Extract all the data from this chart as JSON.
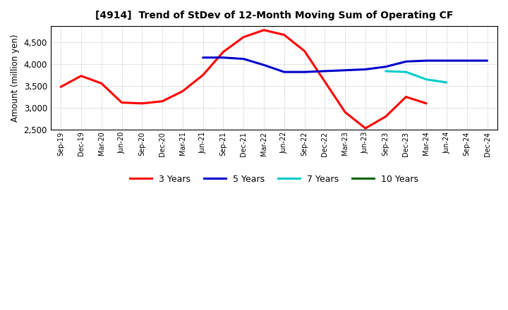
{
  "title": "[4914]  Trend of StDev of 12-Month Moving Sum of Operating CF",
  "ylabel": "Amount (million yen)",
  "ylim": [
    2500,
    4870
  ],
  "yticks": [
    2500,
    3000,
    3500,
    4000,
    4500
  ],
  "background_color": "#ffffff",
  "plot_background": "#ffffff",
  "series": {
    "3yr": {
      "color": "#ff0000",
      "label": "3 Years",
      "x": [
        "Sep-19",
        "Dec-19",
        "Mar-20",
        "Jun-20",
        "Sep-20",
        "Dec-20",
        "Mar-21",
        "Jun-21",
        "Sep-21",
        "Dec-21",
        "Mar-22",
        "Jun-22",
        "Sep-22",
        "Dec-22",
        "Mar-23",
        "Jun-23",
        "Sep-23",
        "Dec-23",
        "Mar-24"
      ],
      "y": [
        3480,
        3730,
        3560,
        3120,
        3100,
        3150,
        3380,
        3750,
        4280,
        4620,
        4780,
        4670,
        4300,
        3600,
        2900,
        2530,
        2800,
        3250,
        3100
      ]
    },
    "5yr": {
      "color": "#0000cc",
      "label": "5 Years",
      "x": [
        "Jun-21",
        "Sep-21",
        "Dec-21",
        "Mar-22",
        "Jun-22",
        "Sep-22",
        "Dec-22",
        "Mar-23",
        "Jun-23",
        "Sep-23",
        "Dec-23",
        "Mar-24",
        "Jun-24",
        "Sep-24",
        "Dec-24"
      ],
      "y": [
        4150,
        4150,
        4120,
        3980,
        3820,
        3820,
        3840,
        3860,
        3880,
        3940,
        4060,
        4080,
        4080,
        4080,
        4080
      ]
    },
    "7yr": {
      "color": "#00cccc",
      "label": "7 Years",
      "x": [
        "Sep-23",
        "Dec-23",
        "Mar-24",
        "Jun-24"
      ],
      "y": [
        3840,
        3820,
        3650,
        3580
      ]
    },
    "10yr": {
      "color": "#006600",
      "label": "10 Years",
      "x": [],
      "y": []
    }
  },
  "xtick_labels": [
    "Sep-19",
    "Dec-19",
    "Mar-20",
    "Jun-20",
    "Sep-20",
    "Dec-20",
    "Mar-21",
    "Jun-21",
    "Sep-21",
    "Dec-21",
    "Mar-22",
    "Jun-22",
    "Sep-22",
    "Dec-22",
    "Mar-23",
    "Jun-23",
    "Sep-23",
    "Dec-23",
    "Mar-24",
    "Jun-24",
    "Sep-24",
    "Dec-24"
  ],
  "grid_color": "#888888",
  "line_width": 2.2
}
